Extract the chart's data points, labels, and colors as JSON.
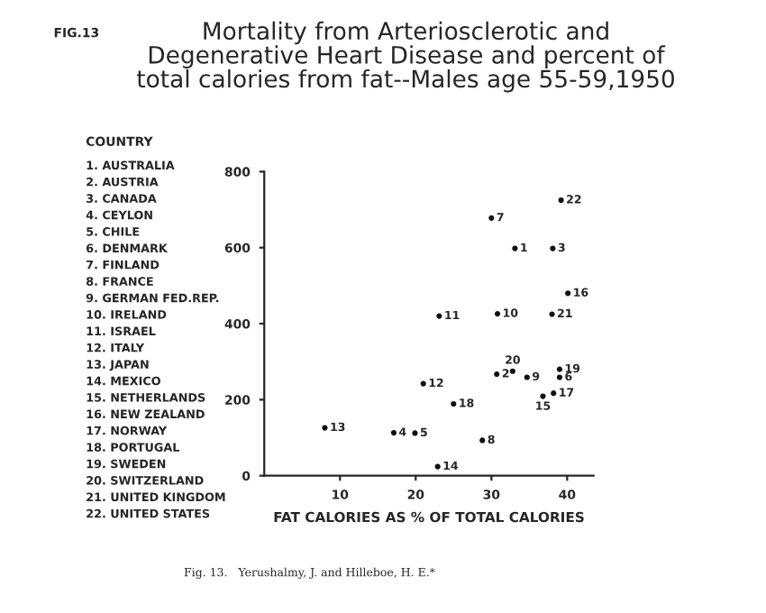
{
  "chart_data": {
    "type": "scatter",
    "title": "Mortality from Arteriosclerotic and\nDegenerative Heart Disease and percent of\ntotal calories from fat--Males age 55-59,1950",
    "xlabel": "FAT CALORIES AS % OF TOTAL CALORIES",
    "annotations": [
      "FIG.13",
      "COUNTRY",
      "1. AUSTRALIA",
      "2. AUSTRIA",
      "3. CANADA",
      "4. CEYLON",
      "5. CHILE",
      "6. DENMARK",
      "7. FINLAND",
      "8. FRANCE",
      "9. GERMAN FED.REP.",
      "10. IRELAND",
      "11. ISRAEL",
      "12. ITALY",
      "13. JAPAN",
      "14. MEXICO",
      "15. NETHERLANDS",
      "16. NEW ZEALAND",
      "17. NORWAY",
      "18. PORTUGAL",
      "19. SWEDEN",
      "20. SWITZERLAND",
      "21. UNITED KINGDOM",
      "22. UNITED STATES",
      "Fig. 13.   Yerushalmy, J. and Hilleboe, H. E.*",
      {
        "text": "1",
        "x": 33.1,
        "y": 598
      },
      {
        "text": "2",
        "x": 30.7,
        "y": 267
      },
      {
        "text": "3",
        "x": 38.1,
        "y": 598
      },
      {
        "text": "4",
        "x": 17.1,
        "y": 113
      },
      {
        "text": "5",
        "x": 19.9,
        "y": 112
      },
      {
        "text": "6",
        "x": 39.0,
        "y": 259
      },
      {
        "text": "7",
        "x": 30.0,
        "y": 678
      },
      {
        "text": "8",
        "x": 28.8,
        "y": 93
      },
      {
        "text": "9",
        "x": 34.7,
        "y": 259
      },
      {
        "text": "10",
        "x": 30.8,
        "y": 426
      },
      {
        "text": "11",
        "x": 23.1,
        "y": 420
      },
      {
        "text": "12",
        "x": 21.0,
        "y": 242
      },
      {
        "text": "13",
        "x": 8.0,
        "y": 126
      },
      {
        "text": "14",
        "x": 22.9,
        "y": 24
      },
      {
        "text": "15",
        "x": 36.8,
        "y": 209
      },
      {
        "text": "16",
        "x": 40.1,
        "y": 480
      },
      {
        "text": "17",
        "x": 38.2,
        "y": 217
      },
      {
        "text": "18",
        "x": 25.0,
        "y": 189
      },
      {
        "text": "19",
        "x": 39.0,
        "y": 280
      },
      {
        "text": "20",
        "x": 32.8,
        "y": 275
      },
      {
        "text": "21",
        "x": 38.0,
        "y": 425
      },
      {
        "text": "22",
        "x": 39.2,
        "y": 725
      }
    ],
    "x": [
      33.1,
      30.7,
      38.1,
      17.1,
      19.9,
      39.0,
      30.0,
      28.8,
      34.7,
      30.8,
      23.1,
      21.0,
      8.0,
      22.9,
      36.8,
      40.1,
      38.2,
      25.0,
      39.0,
      32.8,
      38.0,
      39.2
    ],
    "values": [
      598,
      267,
      598,
      113,
      112,
      259,
      678,
      93,
      259,
      426,
      420,
      242,
      126,
      24,
      209,
      480,
      217,
      189,
      280,
      275,
      425,
      725
    ],
    "color": "#111111",
    "xlim": [
      0,
      43.5
    ],
    "ylim": [
      0,
      800
    ],
    "xticks": [
      10,
      20,
      30,
      40
    ],
    "yticks": [
      0,
      200,
      400,
      600,
      800
    ],
    "marker": "circle"
  }
}
